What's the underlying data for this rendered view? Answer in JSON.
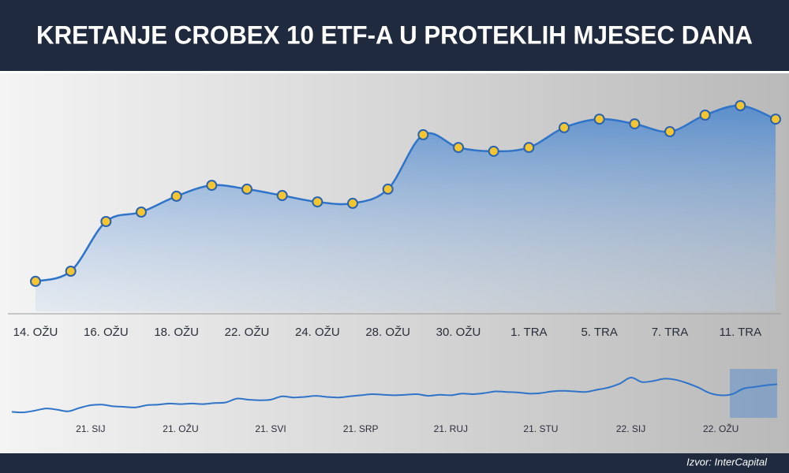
{
  "header": {
    "title": "KRETANJE CROBEX 10 ETF-A U PROTEKLIH MJESEC DANA"
  },
  "chart_data": [
    {
      "type": "line",
      "fill": true,
      "markers": true,
      "color": "#2f74c8",
      "marker_color": "#f2c531",
      "categories": [
        "14. OŽU",
        null,
        "16. OŽU",
        null,
        "18. OŽU",
        null,
        "22. OŽU",
        null,
        "24. OŽU",
        null,
        "28. OŽU",
        null,
        "30. OŽU",
        null,
        "1. TRA",
        null,
        "5. TRA",
        null,
        "7. TRA",
        null,
        "11. TRA",
        null
      ],
      "values": [
        12.7,
        17,
        38,
        42,
        48.7,
        53.3,
        51.7,
        49,
        46.3,
        45.7,
        51.7,
        74.7,
        69.3,
        67.7,
        69.3,
        77.7,
        81.3,
        79.3,
        76,
        83,
        87,
        81.3
      ],
      "ylim": [
        0,
        100
      ]
    },
    {
      "type": "line",
      "fill": false,
      "markers": false,
      "color": "#2f74c8",
      "categories": [
        null,
        null,
        null,
        null,
        null,
        null,
        null,
        "21. SIJ",
        null,
        null,
        null,
        null,
        null,
        null,
        null,
        "21. OŽU",
        null,
        null,
        null,
        null,
        null,
        null,
        null,
        "21. SVI",
        null,
        null,
        null,
        null,
        null,
        null,
        null,
        "21. SRP",
        null,
        null,
        null,
        null,
        null,
        null,
        null,
        "21. RUJ",
        null,
        null,
        null,
        null,
        null,
        null,
        null,
        "21. STU",
        null,
        null,
        null,
        null,
        null,
        null,
        null,
        "22. SIJ",
        null,
        null,
        null,
        null,
        null,
        null,
        null,
        "22. OŽU",
        null,
        null,
        null,
        null,
        null
      ],
      "values": [
        18,
        17,
        20,
        24,
        22,
        19,
        25,
        30,
        31,
        28,
        27,
        26,
        30,
        31,
        33,
        32,
        33,
        32,
        34,
        35,
        42,
        40,
        39,
        40,
        46,
        44,
        45,
        47,
        45,
        44,
        46,
        48,
        50,
        49,
        48,
        49,
        50,
        47,
        49,
        48,
        51,
        50,
        52,
        55,
        54,
        53,
        51,
        52,
        55,
        56,
        55,
        54,
        58,
        62,
        69,
        80,
        72,
        74,
        78,
        76,
        70,
        62,
        52,
        48,
        50,
        60,
        63,
        66,
        68
      ],
      "ylim": [
        0,
        100
      ]
    }
  ],
  "footer": {
    "source": "Izvor: InterCapital"
  }
}
